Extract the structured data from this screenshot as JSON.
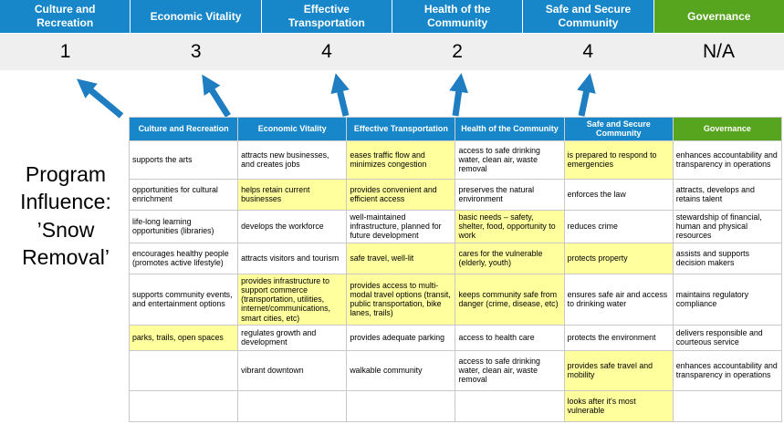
{
  "title": "Program Influence: ’Snow Removal’",
  "colors": {
    "header_blue": "#1787c9",
    "header_green": "#57a41f",
    "highlight_yellow": "#ffff9e",
    "score_bg": "#efefef",
    "arrow_blue": "#1f7ec2"
  },
  "summary": {
    "columns": [
      {
        "label": "Culture and Recreation",
        "score": "1",
        "type": "blue"
      },
      {
        "label": "Economic Vitality",
        "score": "3",
        "type": "blue"
      },
      {
        "label": "Effective Transportation",
        "score": "4",
        "type": "blue"
      },
      {
        "label": "Health of the Community",
        "score": "2",
        "type": "blue"
      },
      {
        "label": "Safe and Secure Community",
        "score": "4",
        "type": "blue"
      },
      {
        "label": "Governance",
        "score": "N/A",
        "type": "green"
      }
    ]
  },
  "matrix": {
    "headers": [
      {
        "label": "Culture and Recreation",
        "type": "blue"
      },
      {
        "label": "Economic Vitality",
        "type": "blue"
      },
      {
        "label": "Effective Transportation",
        "type": "blue"
      },
      {
        "label": "Health of the Community",
        "type": "blue"
      },
      {
        "label": "Safe and Secure Community",
        "type": "blue"
      },
      {
        "label": "Governance",
        "type": "green"
      }
    ],
    "rows": [
      [
        {
          "text": "supports the arts",
          "highlight": false
        },
        {
          "text": "attracts new businesses, and creates jobs",
          "highlight": false
        },
        {
          "text": "eases traffic flow and minimizes congestion",
          "highlight": true
        },
        {
          "text": "access to safe drinking water, clean air, waste removal",
          "highlight": false
        },
        {
          "text": "is prepared to respond to emergencies",
          "highlight": true
        },
        {
          "text": "enhances accountability and transparency in operations",
          "highlight": false
        }
      ],
      [
        {
          "text": "opportunities for cultural enrichment",
          "highlight": false
        },
        {
          "text": "helps retain current businesses",
          "highlight": true
        },
        {
          "text": "provides convenient and efficient access",
          "highlight": true
        },
        {
          "text": "preserves the natural environment",
          "highlight": false
        },
        {
          "text": "enforces the law",
          "highlight": false
        },
        {
          "text": "attracts, develops and retains talent",
          "highlight": false
        }
      ],
      [
        {
          "text": "life-long learning opportunities (libraries)",
          "highlight": false
        },
        {
          "text": "develops the workforce",
          "highlight": false
        },
        {
          "text": "well-maintained infrastructure, planned for future development",
          "highlight": false
        },
        {
          "text": "basic needs – safety, shelter, food, opportunity to work",
          "highlight": true
        },
        {
          "text": "reduces crime",
          "highlight": false
        },
        {
          "text": "stewardship of financial, human and physical resources",
          "highlight": false
        }
      ],
      [
        {
          "text": "encourages healthy people (promotes active lifestyle)",
          "highlight": false
        },
        {
          "text": "attracts visitors and tourism",
          "highlight": false
        },
        {
          "text": "safe travel, well-lit",
          "highlight": true
        },
        {
          "text": "cares for the vulnerable (elderly, youth)",
          "highlight": true
        },
        {
          "text": "protects property",
          "highlight": true
        },
        {
          "text": "assists and supports decision makers",
          "highlight": false
        }
      ],
      [
        {
          "text": "supports community events, and entertainment options",
          "highlight": false
        },
        {
          "text": "provides infrastructure to support commerce (transportation, utilities, internet/communications, smart cities, etc)",
          "highlight": true
        },
        {
          "text": "provides access to multi-modal travel options (transit, public transportation, bike lanes, trails)",
          "highlight": true
        },
        {
          "text": "keeps community safe from danger (crime, disease, etc)",
          "highlight": true
        },
        {
          "text": "ensures safe air and access to drinking water",
          "highlight": false
        },
        {
          "text": "maintains regulatory compliance",
          "highlight": false
        }
      ],
      [
        {
          "text": "parks, trails, open spaces",
          "highlight": true
        },
        {
          "text": "regulates growth and development",
          "highlight": false
        },
        {
          "text": "provides adequate parking",
          "highlight": false
        },
        {
          "text": "access to health care",
          "highlight": false
        },
        {
          "text": "protects the environment",
          "highlight": false
        },
        {
          "text": "delivers responsible and courteous service",
          "highlight": false
        }
      ],
      [
        {
          "text": "",
          "highlight": false
        },
        {
          "text": "vibrant downtown",
          "highlight": false
        },
        {
          "text": "walkable community",
          "highlight": false
        },
        {
          "text": "access to safe drinking water, clean air, waste removal",
          "highlight": false
        },
        {
          "text": "provides safe travel and mobility",
          "highlight": true
        },
        {
          "text": "enhances accountability and transparency in operations",
          "highlight": false
        }
      ],
      [
        {
          "text": "",
          "highlight": false
        },
        {
          "text": "",
          "highlight": false
        },
        {
          "text": "",
          "highlight": false
        },
        {
          "text": "",
          "highlight": false
        },
        {
          "text": "looks after it's most vulnerable",
          "highlight": true
        },
        {
          "text": "",
          "highlight": false
        }
      ]
    ]
  }
}
